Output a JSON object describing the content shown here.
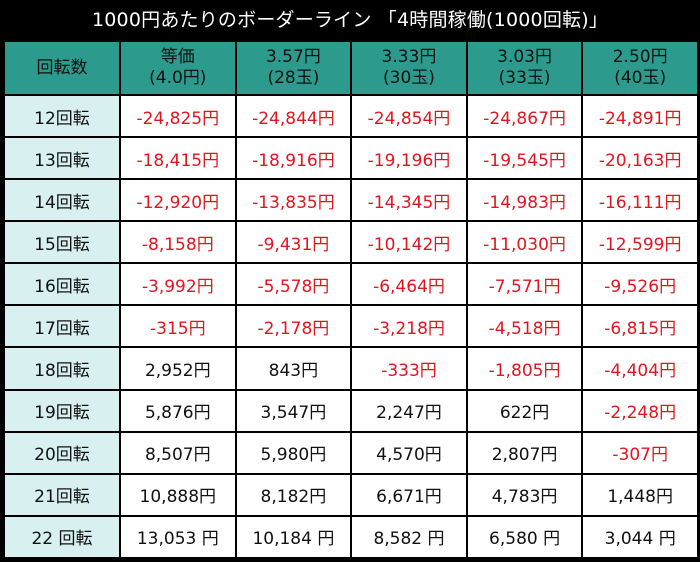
{
  "title": "1000円あたりのボーダーライン 「4時間稼働(1000回転)」",
  "header": {
    "col0": "回転数",
    "cols": [
      {
        "line1": "等価",
        "line2": "(4.0円)"
      },
      {
        "line1": "3.57円",
        "line2": "(28玉)"
      },
      {
        "line1": "3.33円",
        "line2": "(30玉)"
      },
      {
        "line1": "3.03円",
        "line2": "(33玉)"
      },
      {
        "line1": "2.50円",
        "line2": "(40玉)"
      }
    ]
  },
  "rows": [
    {
      "label": "12回転",
      "values": [
        "-24,825円",
        "-24,844円",
        "-24,854円",
        "-24,867円",
        "-24,891円"
      ]
    },
    {
      "label": "13回転",
      "values": [
        "-18,415円",
        "-18,916円",
        "-19,196円",
        "-19,545円",
        "-20,163円"
      ]
    },
    {
      "label": "14回転",
      "values": [
        "-12,920円",
        "-13,835円",
        "-14,345円",
        "-14,983円",
        "-16,111円"
      ]
    },
    {
      "label": "15回転",
      "values": [
        "-8,158円",
        "-9,431円",
        "-10,142円",
        "-11,030円",
        "-12,599円"
      ]
    },
    {
      "label": "16回転",
      "values": [
        "-3,992円",
        "-5,578円",
        "-6,464円",
        "-7,571円",
        "-9,526円"
      ]
    },
    {
      "label": "17回転",
      "values": [
        "-315円",
        "-2,178円",
        "-3,218円",
        "-4,518円",
        "-6,815円"
      ]
    },
    {
      "label": "18回転",
      "values": [
        "2,952円",
        "843円",
        "-333円",
        "-1,805円",
        "-4,404円"
      ]
    },
    {
      "label": "19回転",
      "values": [
        "5,876円",
        "3,547円",
        "2,247円",
        "622円",
        "-2,248円"
      ]
    },
    {
      "label": "20回転",
      "values": [
        "8,507円",
        "5,980円",
        "4,570円",
        "2,807円",
        "-307円"
      ]
    },
    {
      "label": "21回転",
      "values": [
        "10,888円",
        "8,182円",
        "6,671円",
        "4,783円",
        "1,448円"
      ]
    },
    {
      "label": "22 回転",
      "values": [
        "13,053 円",
        "10,184 円",
        "8,582 円",
        "6,580 円",
        "3,044 円"
      ]
    }
  ],
  "colors": {
    "header_bg": "#2c9a8c",
    "row_label_bg": "#d8f0f0",
    "negative": "#e0161f",
    "positive": "#111111",
    "frame": "#000000"
  }
}
